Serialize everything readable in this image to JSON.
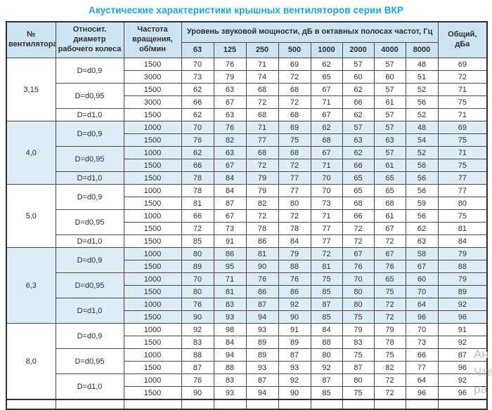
{
  "title": "Акустические характеристики крышных вентиляторов серии ВКР",
  "colors": {
    "title_accent": "#1ba7e0",
    "header_bg": "#cce3f2",
    "shaded_row_bg": "#dcedf8",
    "border": "#4a4a4a"
  },
  "watermark": [
    "Ан",
    "Чта",
    "ра"
  ],
  "table": {
    "headers": {
      "fan": "№ вентилятора",
      "diameter": "Относит. диаметр рабочего колеса",
      "speed": "Частота вращения, об/мин",
      "group": "Уровень звуковой мощности, дБ в октавных полосах частот, Гц",
      "freqs": [
        "63",
        "125",
        "250",
        "500",
        "1000",
        "2000",
        "4000",
        "8000"
      ],
      "total": "Общий, дБа"
    },
    "sections": [
      {
        "fan": "3,15",
        "shaded": false,
        "groups": [
          {
            "diameter": "D=d0,9",
            "rows": [
              {
                "speed": "1500",
                "values": [
                  70,
                  76,
                  71,
                  69,
                  62,
                  57,
                  57,
                  48
                ],
                "total": 69
              },
              {
                "speed": "3000",
                "values": [
                  73,
                  79,
                  74,
                  72,
                  65,
                  60,
                  60,
                  51
                ],
                "total": 72
              }
            ]
          },
          {
            "diameter": "D=d0,95",
            "rows": [
              {
                "speed": "1500",
                "values": [
                  62,
                  63,
                  68,
                  68,
                  67,
                  62,
                  57,
                  52
                ],
                "total": 71
              },
              {
                "speed": "3000",
                "values": [
                  66,
                  67,
                  72,
                  72,
                  71,
                  66,
                  61,
                  56
                ],
                "total": 75
              }
            ]
          },
          {
            "diameter": "D=d1,0",
            "rows": [
              {
                "speed": "1500",
                "values": [
                  62,
                  63,
                  68,
                  68,
                  67,
                  62,
                  57,
                  52
                ],
                "total": 71
              }
            ]
          }
        ]
      },
      {
        "fan": "4,0",
        "shaded": true,
        "groups": [
          {
            "diameter": "D=d0,9",
            "rows": [
              {
                "speed": "1000",
                "values": [
                  70,
                  76,
                  71,
                  69,
                  62,
                  57,
                  57,
                  48
                ],
                "total": 69
              },
              {
                "speed": "1500",
                "values": [
                  76,
                  82,
                  77,
                  75,
                  68,
                  63,
                  63,
                  54
                ],
                "total": 75
              }
            ]
          },
          {
            "diameter": "D=d0,95",
            "rows": [
              {
                "speed": "1000",
                "values": [
                  62,
                  63,
                  68,
                  68,
                  67,
                  62,
                  57,
                  52
                ],
                "total": 71
              },
              {
                "speed": "1500",
                "values": [
                  66,
                  67,
                  72,
                  72,
                  71,
                  66,
                  61,
                  56
                ],
                "total": 75
              }
            ]
          },
          {
            "diameter": "D=d1,0",
            "rows": [
              {
                "speed": "1500",
                "values": [
                  78,
                  84,
                  79,
                  77,
                  70,
                  65,
                  65,
                  56
                ],
                "total": 77
              }
            ]
          }
        ]
      },
      {
        "fan": "5,0",
        "shaded": false,
        "groups": [
          {
            "diameter": "D=d0,9",
            "rows": [
              {
                "speed": "1000",
                "values": [
                  78,
                  84,
                  79,
                  77,
                  70,
                  65,
                  65,
                  56
                ],
                "total": 77
              },
              {
                "speed": "1500",
                "values": [
                  81,
                  87,
                  82,
                  80,
                  73,
                  68,
                  68,
                  59
                ],
                "total": 80
              }
            ]
          },
          {
            "diameter": "D=d0,95",
            "rows": [
              {
                "speed": "1000",
                "values": [
                  66,
                  67,
                  72,
                  72,
                  71,
                  66,
                  61,
                  56
                ],
                "total": 75
              },
              {
                "speed": "1500",
                "values": [
                  72,
                  73,
                  78,
                  78,
                  77,
                  72,
                  67,
                  62
                ],
                "total": 81
              }
            ]
          },
          {
            "diameter": "D=d1,0",
            "rows": [
              {
                "speed": "1500",
                "values": [
                  85,
                  91,
                  86,
                  84,
                  77,
                  72,
                  72,
                  63
                ],
                "total": 84
              }
            ]
          }
        ]
      },
      {
        "fan": "6,3",
        "shaded": true,
        "groups": [
          {
            "diameter": "D=d0,9",
            "rows": [
              {
                "speed": "1000",
                "values": [
                  80,
                  86,
                  81,
                  79,
                  72,
                  67,
                  67,
                  58
                ],
                "total": 79
              },
              {
                "speed": "1500",
                "values": [
                  89,
                  95,
                  90,
                  88,
                  81,
                  76,
                  76,
                  67
                ],
                "total": 88
              }
            ]
          },
          {
            "diameter": "D=d0,95",
            "rows": [
              {
                "speed": "1000",
                "values": [
                  70,
                  71,
                  76,
                  76,
                  75,
                  70,
                  65,
                  60
                ],
                "total": 79
              },
              {
                "speed": "1500",
                "values": [
                  80,
                  81,
                  86,
                  86,
                  85,
                  80,
                  75,
                  70
                ],
                "total": 89
              }
            ]
          },
          {
            "diameter": "D=d1,0",
            "rows": [
              {
                "speed": "1000",
                "values": [
                  76,
                  83,
                  87,
                  92,
                  87,
                  80,
                  72,
                  64
                ],
                "total": 92
              },
              {
                "speed": "1500",
                "values": [
                  90,
                  93,
                  94,
                  90,
                  85,
                  75,
                  72,
                  96
                ],
                "total": 96
              }
            ]
          }
        ]
      },
      {
        "fan": "8,0",
        "shaded": false,
        "groups": [
          {
            "diameter": "D=d0,9",
            "rows": [
              {
                "speed": "1000",
                "values": [
                  92,
                  98,
                  93,
                  91,
                  84,
                  79,
                  79,
                  70
                ],
                "total": 91
              },
              {
                "speed": "1500",
                "values": [
                  83,
                  84,
                  89,
                  89,
                  88,
                  83,
                  78,
                  73
                ],
                "total": 92
              }
            ]
          },
          {
            "diameter": "D=d0,95",
            "rows": [
              {
                "speed": "1000",
                "values": [
                  88,
                  94,
                  89,
                  87,
                  80,
                  75,
                  75,
                  66
                ],
                "total": 87
              },
              {
                "speed": "1500",
                "values": [
                  87,
                  88,
                  93,
                  93,
                  92,
                  87,
                  82,
                  77
                ],
                "total": 96
              }
            ]
          },
          {
            "diameter": "D=d1,0",
            "rows": [
              {
                "speed": "1000",
                "values": [
                  76,
                  83,
                  87,
                  92,
                  87,
                  80,
                  72,
                  64
                ],
                "total": 92
              },
              {
                "speed": "1500",
                "values": [
                  90,
                  93,
                  94,
                  90,
                  85,
                  75,
                  72,
                  96
                ],
                "total": 96
              }
            ]
          }
        ]
      }
    ]
  }
}
